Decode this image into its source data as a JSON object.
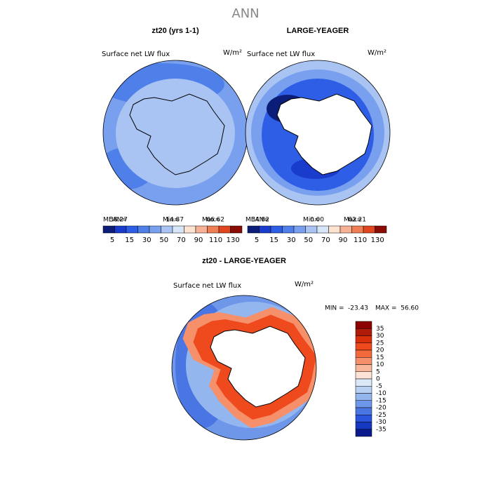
{
  "title": "ANN",
  "panels": [
    {
      "title": "zt20 (yrs 1-1)",
      "variable": "Surface net LW flux",
      "units": "W/m²",
      "stats": [
        "MEAN=",
        "38.27",
        "Min=",
        "14.87",
        "Max=",
        "66.62"
      ]
    },
    {
      "title": "LARGE-YEAGER",
      "variable": "Surface net LW flux",
      "units": "W/m²",
      "stats": [
        "MEAN=",
        "34.82",
        "Min=",
        "0.00",
        "Max=",
        "62.21"
      ]
    },
    {
      "title": "zt20 - LARGE-YEAGER",
      "variable": "Surface net LW flux",
      "units": "W/m²",
      "stats": [
        "MIN =",
        "-23.43",
        "MAX =",
        "56.60"
      ]
    }
  ],
  "colorbars": [
    {
      "colors": [
        "#0b1d78",
        "#1a3ccc",
        "#2f5ee6",
        "#4f7fe9",
        "#79a0ee",
        "#a9c4f3",
        "#d6e5f8",
        "#fde3d0",
        "#f7b195",
        "#ef7f55",
        "#e0461f",
        "#8b0b05"
      ],
      "labels": [
        "5",
        "15",
        "30",
        "50",
        "70",
        "90",
        "110",
        "130"
      ]
    },
    {
      "colors": [
        "#8b0000",
        "#b01a08",
        "#d8300c",
        "#ee4a1e",
        "#f26a3c",
        "#f5906a",
        "#f8b79a",
        "#fce3d6",
        "#dae8f7",
        "#b8d0f2",
        "#94b6ee",
        "#6e97e9",
        "#4a76e4",
        "#2c55dd",
        "#1538c0",
        "#0a1a8a"
      ],
      "labels": [
        "35",
        "30",
        "25",
        "20",
        "15",
        "10",
        "5",
        "0",
        "-5",
        "-10",
        "-15",
        "-20",
        "-25",
        "-30",
        "-35"
      ]
    }
  ]
}
